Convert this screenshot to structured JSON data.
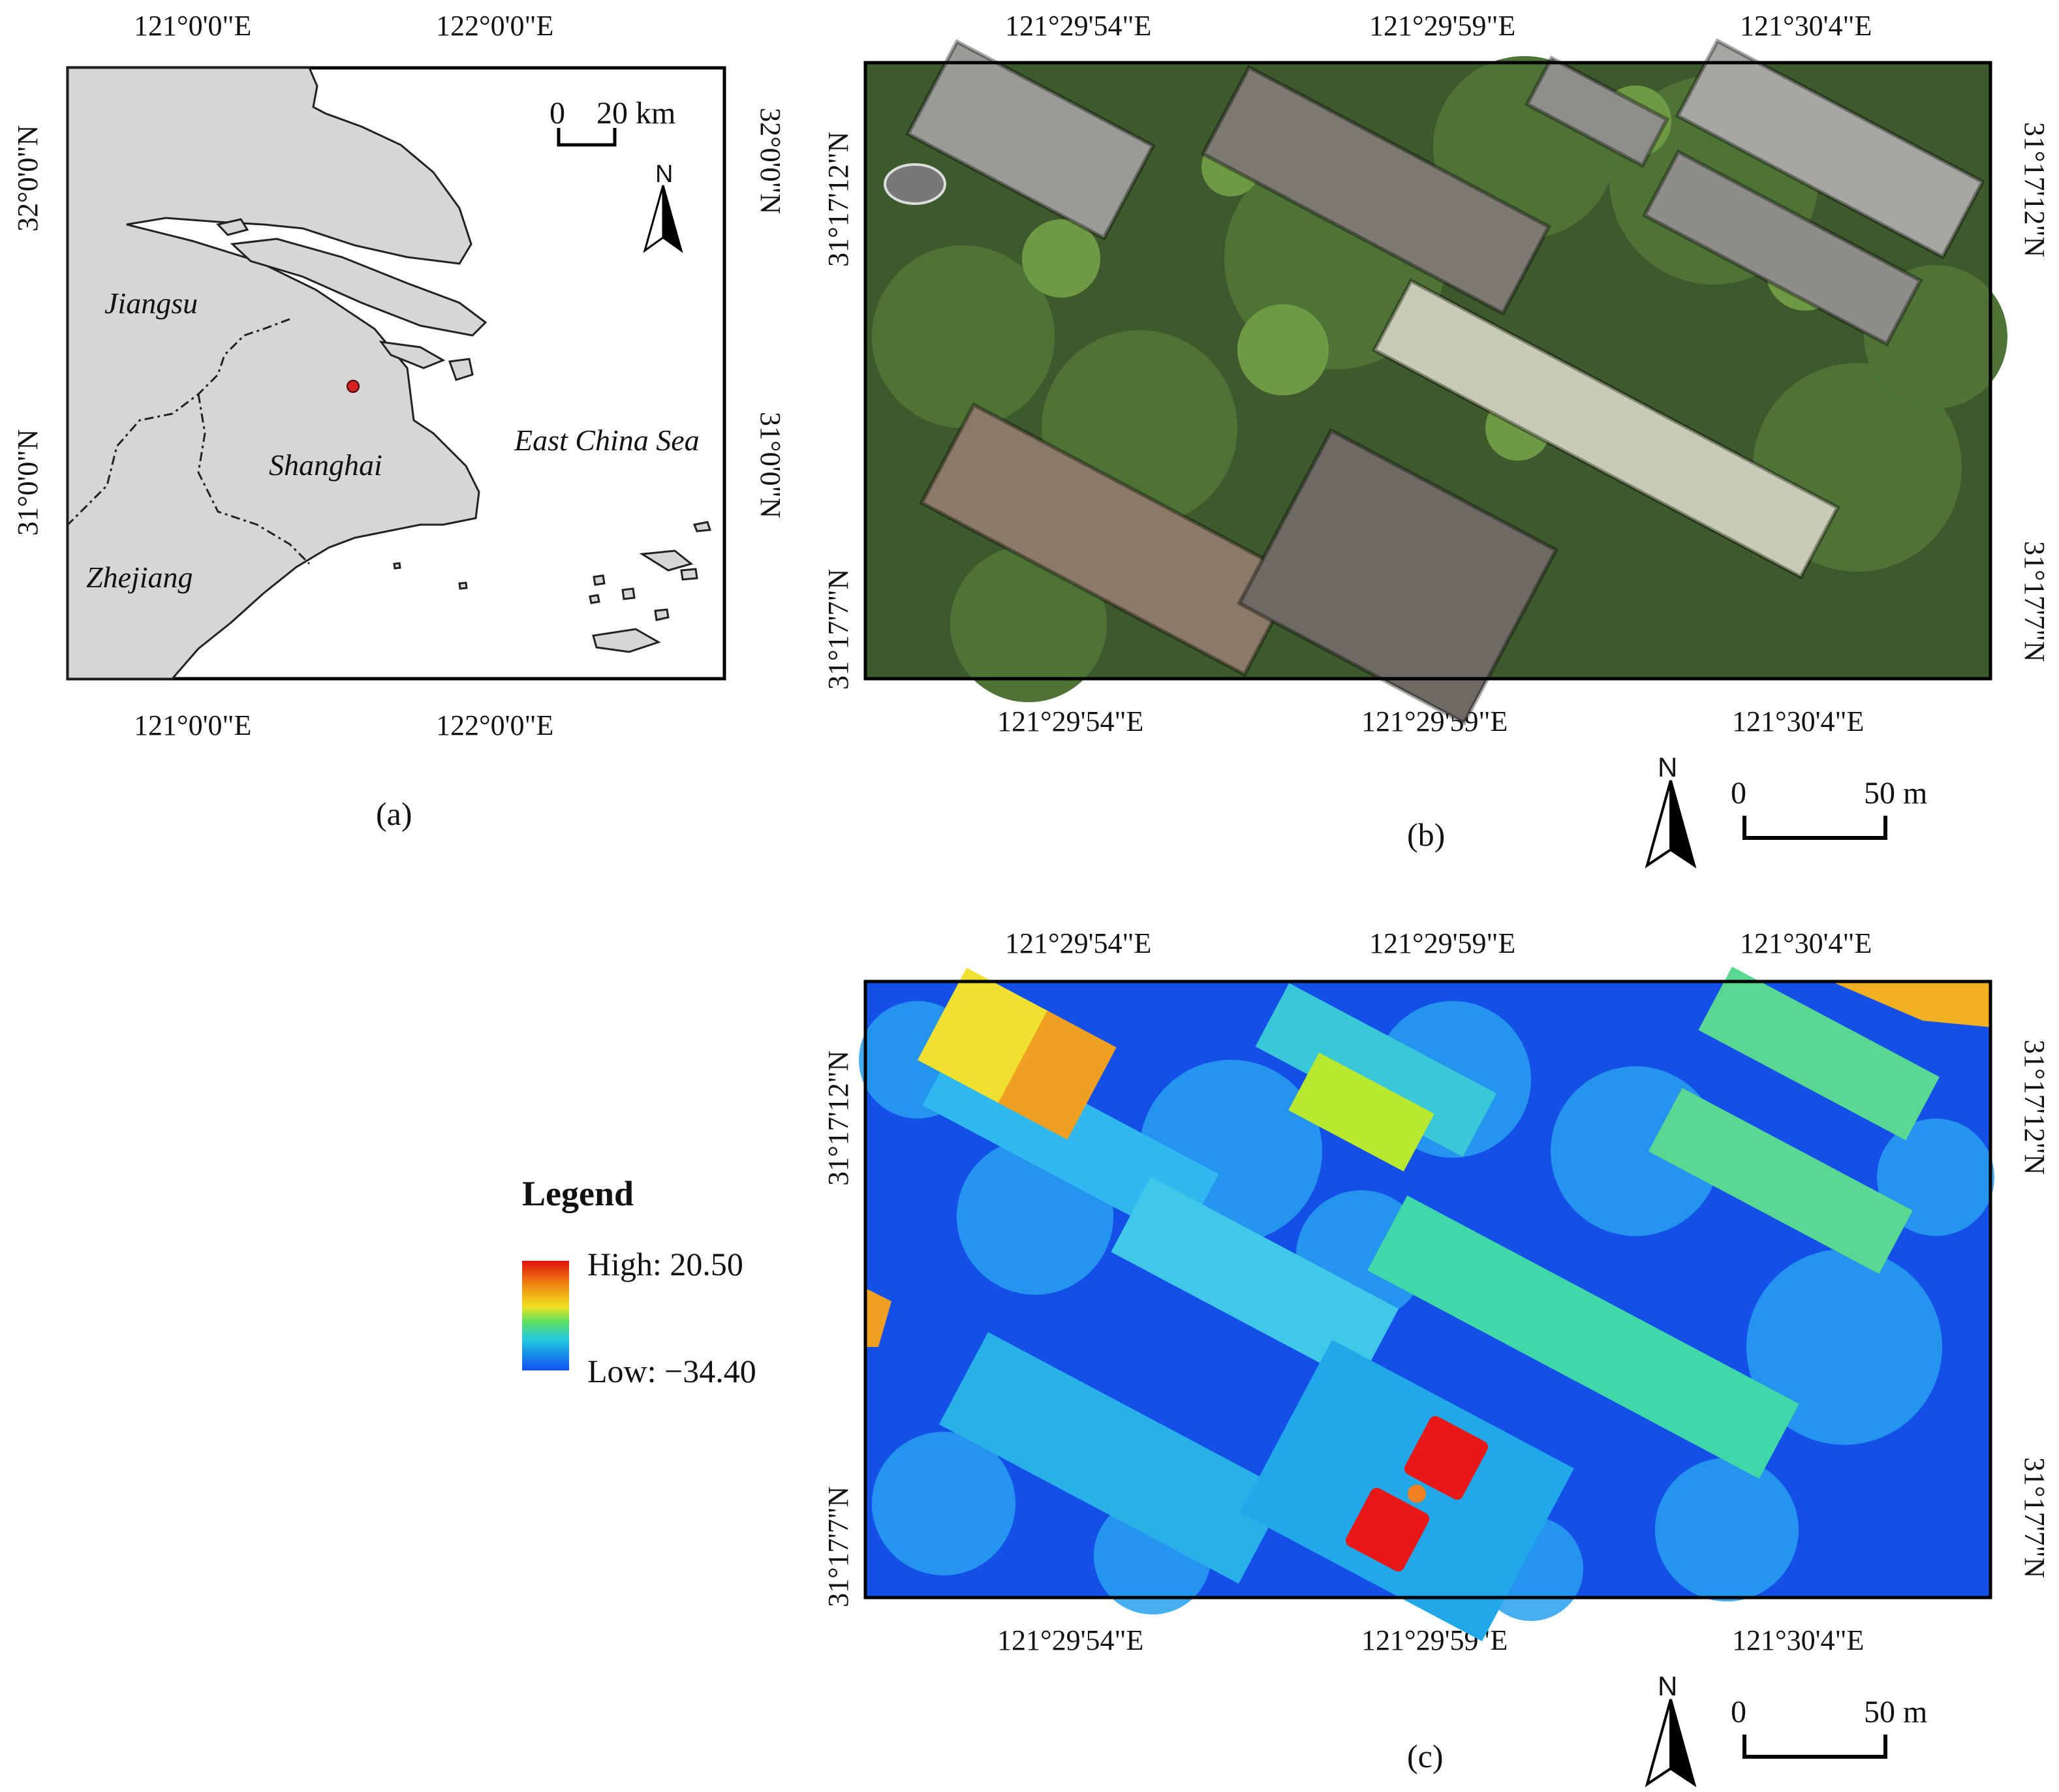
{
  "panel_a": {
    "label": "(a)",
    "top_ticks": [
      "121°0'0\"E",
      "122°0'0\"E"
    ],
    "bottom_ticks": [
      "121°0'0\"E",
      "122°0'0\"E"
    ],
    "left_ticks": [
      "32°0'0\"N",
      "31°0'0\"N"
    ],
    "right_ticks": [
      "32°0'0\"N",
      "31°0'0\"N"
    ],
    "places": {
      "jiangsu": "Jiangsu",
      "shanghai": "Shanghai",
      "zhejiang": "Zhejiang",
      "sea": "East China Sea"
    },
    "scale": {
      "start": "0",
      "end": "20 km"
    },
    "north": "N",
    "colors": {
      "land": "#d6d6d6",
      "water": "#ffffff",
      "site": "#d42020"
    }
  },
  "panel_b": {
    "label": "(b)",
    "top_ticks": [
      "121°29'54\"E",
      "121°29'59\"E",
      "121°30'4\"E"
    ],
    "bottom_ticks": [
      "121°29'54\"E",
      "121°29'59\"E",
      "121°30'4\"E"
    ],
    "left_ticks": [
      "31°17'12\"N",
      "31°17'7\"N"
    ],
    "right_ticks": [
      "31°17'12\"N",
      "31°17'7\"N"
    ],
    "scale": {
      "start": "0",
      "end": "50 m"
    },
    "north": "N"
  },
  "panel_c": {
    "label": "(c)",
    "top_ticks": [
      "121°29'54\"E",
      "121°29'59\"E",
      "121°30'4\"E"
    ],
    "bottom_ticks": [
      "121°29'54\"E",
      "121°29'59\"E",
      "121°30'4\"E"
    ],
    "left_ticks": [
      "31°17'12\"N",
      "31°17'7\"N"
    ],
    "right_ticks": [
      "31°17'12\"N",
      "31°17'7\"N"
    ],
    "scale": {
      "start": "0",
      "end": "50 m"
    },
    "north": "N"
  },
  "legend": {
    "title": "Legend",
    "high": "High: 20.50",
    "low": "Low: −34.40",
    "colors": [
      "#e01010",
      "#f08010",
      "#f0e020",
      "#60e060",
      "#20c8e0",
      "#1050f0"
    ]
  }
}
